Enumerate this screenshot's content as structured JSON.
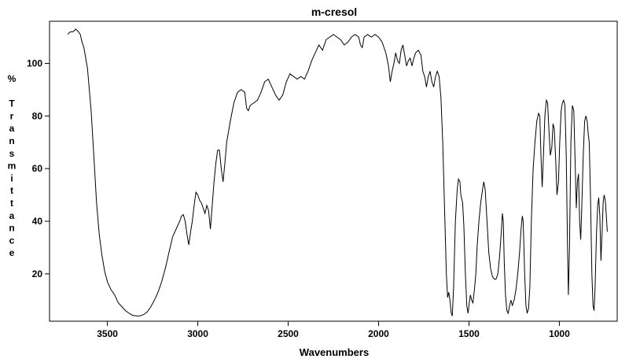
{
  "chart_data": {
    "type": "line",
    "title": "m-cresol",
    "xlabel": "Wavenumbers",
    "ylabel": "% Transmittance",
    "ylabel_chars": [
      "%",
      "",
      "T",
      "r",
      "a",
      "n",
      "s",
      "m",
      "i",
      "t",
      "t",
      "a",
      "n",
      "c",
      "e"
    ],
    "xlim": [
      3820,
      680
    ],
    "ylim": [
      2,
      116
    ],
    "x_ticks": [
      3500,
      3000,
      2500,
      2000,
      1500,
      1000
    ],
    "y_ticks": [
      20,
      40,
      60,
      80,
      100
    ],
    "grid": false,
    "legend": "none",
    "series": [
      {
        "color": "#000000",
        "points": [
          [
            3720,
            111
          ],
          [
            3705,
            112
          ],
          [
            3690,
            112
          ],
          [
            3675,
            113
          ],
          [
            3660,
            112
          ],
          [
            3650,
            111
          ],
          [
            3640,
            108
          ],
          [
            3630,
            106
          ],
          [
            3610,
            98
          ],
          [
            3590,
            82
          ],
          [
            3575,
            65
          ],
          [
            3560,
            47
          ],
          [
            3545,
            35
          ],
          [
            3530,
            27
          ],
          [
            3515,
            21
          ],
          [
            3500,
            17
          ],
          [
            3480,
            14
          ],
          [
            3460,
            12
          ],
          [
            3440,
            9
          ],
          [
            3420,
            7.5
          ],
          [
            3400,
            6
          ],
          [
            3380,
            5
          ],
          [
            3360,
            4.2
          ],
          [
            3340,
            4
          ],
          [
            3320,
            4
          ],
          [
            3300,
            4.5
          ],
          [
            3280,
            5.5
          ],
          [
            3260,
            7.5
          ],
          [
            3240,
            10
          ],
          [
            3220,
            13
          ],
          [
            3200,
            17
          ],
          [
            3180,
            22
          ],
          [
            3160,
            28
          ],
          [
            3140,
            34
          ],
          [
            3120,
            37
          ],
          [
            3100,
            40
          ],
          [
            3090,
            42
          ],
          [
            3080,
            42.5
          ],
          [
            3070,
            40
          ],
          [
            3060,
            35
          ],
          [
            3050,
            31
          ],
          [
            3040,
            36
          ],
          [
            3030,
            40
          ],
          [
            3020,
            46
          ],
          [
            3010,
            51
          ],
          [
            3000,
            50
          ],
          [
            2990,
            48
          ],
          [
            2980,
            47
          ],
          [
            2970,
            45
          ],
          [
            2960,
            43
          ],
          [
            2950,
            46
          ],
          [
            2940,
            44
          ],
          [
            2930,
            37
          ],
          [
            2920,
            46
          ],
          [
            2910,
            55
          ],
          [
            2900,
            62
          ],
          [
            2890,
            67
          ],
          [
            2880,
            67
          ],
          [
            2870,
            60
          ],
          [
            2860,
            55
          ],
          [
            2850,
            62
          ],
          [
            2840,
            70
          ],
          [
            2820,
            78
          ],
          [
            2800,
            85
          ],
          [
            2780,
            89
          ],
          [
            2760,
            90
          ],
          [
            2740,
            89
          ],
          [
            2730,
            83
          ],
          [
            2720,
            82
          ],
          [
            2710,
            84
          ],
          [
            2690,
            85
          ],
          [
            2670,
            86
          ],
          [
            2650,
            89
          ],
          [
            2630,
            93
          ],
          [
            2610,
            94
          ],
          [
            2590,
            91
          ],
          [
            2570,
            88
          ],
          [
            2550,
            86
          ],
          [
            2530,
            88
          ],
          [
            2510,
            93
          ],
          [
            2490,
            96
          ],
          [
            2470,
            95
          ],
          [
            2450,
            94
          ],
          [
            2430,
            95
          ],
          [
            2410,
            94
          ],
          [
            2390,
            97
          ],
          [
            2370,
            101
          ],
          [
            2350,
            104
          ],
          [
            2330,
            107
          ],
          [
            2310,
            105
          ],
          [
            2290,
            109
          ],
          [
            2270,
            110
          ],
          [
            2250,
            111
          ],
          [
            2230,
            110
          ],
          [
            2210,
            109
          ],
          [
            2190,
            107
          ],
          [
            2170,
            108
          ],
          [
            2150,
            110
          ],
          [
            2130,
            111
          ],
          [
            2110,
            110
          ],
          [
            2100,
            107
          ],
          [
            2090,
            106
          ],
          [
            2080,
            110
          ],
          [
            2060,
            111
          ],
          [
            2040,
            110
          ],
          [
            2020,
            111
          ],
          [
            2000,
            110
          ],
          [
            1980,
            108
          ],
          [
            1960,
            104
          ],
          [
            1945,
            99
          ],
          [
            1935,
            93
          ],
          [
            1925,
            97
          ],
          [
            1915,
            100
          ],
          [
            1905,
            104
          ],
          [
            1895,
            101
          ],
          [
            1885,
            100
          ],
          [
            1875,
            105
          ],
          [
            1865,
            107
          ],
          [
            1855,
            103
          ],
          [
            1845,
            99
          ],
          [
            1835,
            101
          ],
          [
            1825,
            102
          ],
          [
            1815,
            99
          ],
          [
            1805,
            102
          ],
          [
            1795,
            104
          ],
          [
            1780,
            105
          ],
          [
            1765,
            103
          ],
          [
            1755,
            97
          ],
          [
            1745,
            95
          ],
          [
            1735,
            91
          ],
          [
            1725,
            95
          ],
          [
            1715,
            97
          ],
          [
            1705,
            93
          ],
          [
            1695,
            91
          ],
          [
            1685,
            95
          ],
          [
            1675,
            97
          ],
          [
            1665,
            95
          ],
          [
            1655,
            87
          ],
          [
            1645,
            70
          ],
          [
            1635,
            45
          ],
          [
            1625,
            20
          ],
          [
            1618,
            11
          ],
          [
            1612,
            13
          ],
          [
            1605,
            10
          ],
          [
            1598,
            5
          ],
          [
            1592,
            4
          ],
          [
            1585,
            15
          ],
          [
            1575,
            40
          ],
          [
            1565,
            52
          ],
          [
            1558,
            56
          ],
          [
            1550,
            55
          ],
          [
            1545,
            50
          ],
          [
            1535,
            47
          ],
          [
            1528,
            38
          ],
          [
            1520,
            20
          ],
          [
            1512,
            8
          ],
          [
            1505,
            5
          ],
          [
            1498,
            9
          ],
          [
            1492,
            12
          ],
          [
            1485,
            10
          ],
          [
            1478,
            9
          ],
          [
            1470,
            14
          ],
          [
            1462,
            20
          ],
          [
            1455,
            30
          ],
          [
            1445,
            40
          ],
          [
            1435,
            47
          ],
          [
            1425,
            52
          ],
          [
            1418,
            55
          ],
          [
            1410,
            52
          ],
          [
            1400,
            40
          ],
          [
            1390,
            28
          ],
          [
            1380,
            22
          ],
          [
            1370,
            19
          ],
          [
            1360,
            18
          ],
          [
            1350,
            18
          ],
          [
            1340,
            20
          ],
          [
            1330,
            27
          ],
          [
            1320,
            37
          ],
          [
            1315,
            43
          ],
          [
            1310,
            40
          ],
          [
            1305,
            25
          ],
          [
            1298,
            12
          ],
          [
            1290,
            6
          ],
          [
            1283,
            5
          ],
          [
            1275,
            8
          ],
          [
            1268,
            10
          ],
          [
            1260,
            8
          ],
          [
            1250,
            10
          ],
          [
            1240,
            14
          ],
          [
            1230,
            20
          ],
          [
            1220,
            28
          ],
          [
            1212,
            37
          ],
          [
            1205,
            42
          ],
          [
            1200,
            40
          ],
          [
            1192,
            20
          ],
          [
            1185,
            8
          ],
          [
            1178,
            5
          ],
          [
            1170,
            7
          ],
          [
            1163,
            15
          ],
          [
            1155,
            40
          ],
          [
            1145,
            60
          ],
          [
            1135,
            70
          ],
          [
            1125,
            78
          ],
          [
            1115,
            81
          ],
          [
            1108,
            80
          ],
          [
            1102,
            65
          ],
          [
            1095,
            53
          ],
          [
            1088,
            65
          ],
          [
            1080,
            80
          ],
          [
            1072,
            86
          ],
          [
            1065,
            85
          ],
          [
            1058,
            75
          ],
          [
            1050,
            65
          ],
          [
            1042,
            68
          ],
          [
            1035,
            77
          ],
          [
            1028,
            75
          ],
          [
            1020,
            63
          ],
          [
            1013,
            50
          ],
          [
            1005,
            55
          ],
          [
            998,
            70
          ],
          [
            990,
            82
          ],
          [
            983,
            85
          ],
          [
            976,
            86
          ],
          [
            969,
            84
          ],
          [
            962,
            65
          ],
          [
            955,
            30
          ],
          [
            950,
            12
          ],
          [
            944,
            30
          ],
          [
            936,
            70
          ],
          [
            928,
            84
          ],
          [
            920,
            82
          ],
          [
            912,
            60
          ],
          [
            906,
            45
          ],
          [
            900,
            55
          ],
          [
            894,
            58
          ],
          [
            888,
            40
          ],
          [
            882,
            33
          ],
          [
            876,
            45
          ],
          [
            868,
            65
          ],
          [
            860,
            78
          ],
          [
            853,
            80
          ],
          [
            846,
            78
          ],
          [
            840,
            73
          ],
          [
            835,
            70
          ],
          [
            828,
            50
          ],
          [
            820,
            20
          ],
          [
            814,
            8
          ],
          [
            808,
            6
          ],
          [
            802,
            15
          ],
          [
            795,
            35
          ],
          [
            788,
            46
          ],
          [
            782,
            49
          ],
          [
            776,
            42
          ],
          [
            770,
            25
          ],
          [
            764,
            35
          ],
          [
            758,
            47
          ],
          [
            752,
            50
          ],
          [
            746,
            48
          ],
          [
            740,
            42
          ],
          [
            735,
            36
          ]
        ]
      }
    ]
  }
}
